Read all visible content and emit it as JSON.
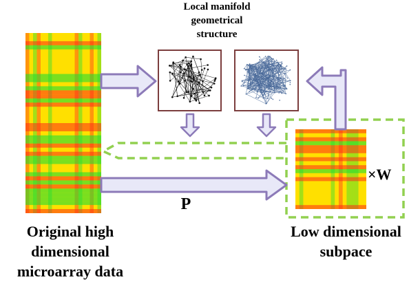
{
  "labels": {
    "local_structure": "Local manifold geometrical structure",
    "original_data": "Original high dimensional microarray data",
    "low_subspace": "Low dimensional subpace",
    "projection": "P",
    "weight": "×W"
  },
  "colors": {
    "arrow_fill": "#e8e8f8",
    "arrow_stroke": "#8c7ab8",
    "dashed_box": "#92d050",
    "graph_frame": "#7b3d3d",
    "heatmap_high": "#ff2a1a",
    "heatmap_mid": "#ffee00",
    "heatmap_low": "#33dd33"
  },
  "icons": [
    "network-graph-sparse",
    "network-graph-dense"
  ]
}
